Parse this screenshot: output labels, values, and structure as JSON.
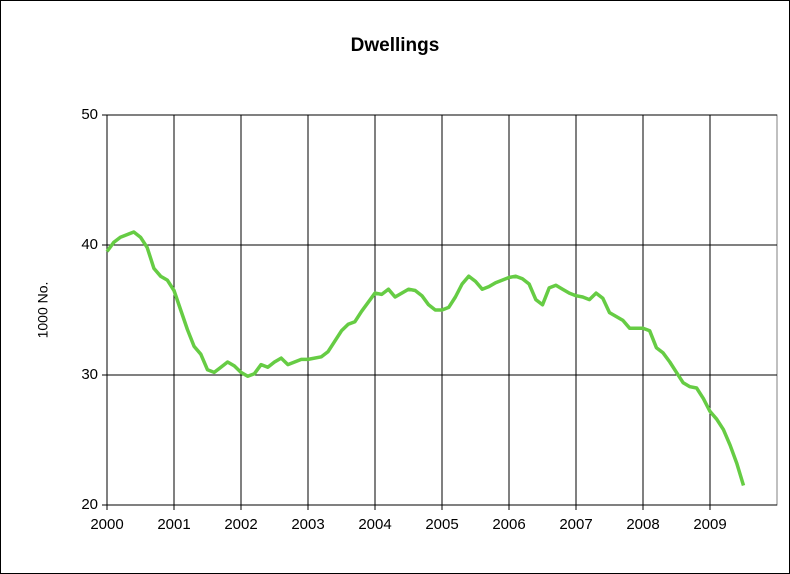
{
  "chart_data": {
    "type": "line",
    "title": "Dwellings",
    "ylabel": "1000 No.",
    "x": [
      2000.0,
      2000.1,
      2000.2,
      2000.3,
      2000.4,
      2000.5,
      2000.6,
      2000.7,
      2000.8,
      2000.9,
      2001.0,
      2001.1,
      2001.2,
      2001.3,
      2001.4,
      2001.5,
      2001.6,
      2001.7,
      2001.8,
      2001.9,
      2002.0,
      2002.1,
      2002.2,
      2002.3,
      2002.4,
      2002.5,
      2002.6,
      2002.7,
      2002.8,
      2002.9,
      2003.0,
      2003.2,
      2003.3,
      2003.4,
      2003.5,
      2003.6,
      2003.7,
      2003.8,
      2003.9,
      2004.0,
      2004.1,
      2004.2,
      2004.3,
      2004.4,
      2004.5,
      2004.6,
      2004.7,
      2004.8,
      2004.9,
      2005.0,
      2005.1,
      2005.2,
      2005.3,
      2005.4,
      2005.5,
      2005.6,
      2005.7,
      2005.8,
      2005.9,
      2006.0,
      2006.1,
      2006.2,
      2006.3,
      2006.4,
      2006.5,
      2006.6,
      2006.7,
      2006.8,
      2006.9,
      2007.0,
      2007.1,
      2007.2,
      2007.3,
      2007.4,
      2007.5,
      2007.6,
      2007.7,
      2007.8,
      2008.0,
      2008.1,
      2008.2,
      2008.3,
      2008.4,
      2008.5,
      2008.6,
      2008.7,
      2008.8,
      2008.9,
      2009.0,
      2009.1,
      2009.2,
      2009.3,
      2009.4,
      2009.5
    ],
    "series": [
      {
        "name": "Dwellings",
        "color": "#66cc44",
        "values": [
          39.5,
          40.2,
          40.6,
          40.8,
          41.0,
          40.6,
          39.8,
          38.2,
          37.6,
          37.3,
          36.5,
          35.0,
          33.5,
          32.2,
          31.6,
          30.4,
          30.2,
          30.6,
          31.0,
          30.7,
          30.2,
          29.9,
          30.1,
          30.8,
          30.6,
          31.0,
          31.3,
          30.8,
          31.0,
          31.2,
          31.2,
          31.4,
          31.8,
          32.6,
          33.4,
          33.9,
          34.1,
          34.9,
          35.6,
          36.3,
          36.2,
          36.6,
          36.0,
          36.3,
          36.6,
          36.5,
          36.1,
          35.4,
          35.0,
          35.0,
          35.2,
          36.0,
          37.0,
          37.6,
          37.2,
          36.6,
          36.8,
          37.1,
          37.3,
          37.5,
          37.6,
          37.4,
          37.0,
          35.8,
          35.4,
          36.7,
          36.9,
          36.6,
          36.3,
          36.1,
          36.0,
          35.8,
          36.3,
          35.9,
          34.8,
          34.5,
          34.2,
          33.6,
          33.6,
          33.4,
          32.1,
          31.7,
          31.0,
          30.2,
          29.4,
          29.1,
          29.0,
          28.2,
          27.2,
          26.6,
          25.8,
          24.6,
          23.2,
          21.5
        ]
      }
    ],
    "xlim": [
      2000,
      2010
    ],
    "xticks": [
      2000,
      2001,
      2002,
      2003,
      2004,
      2005,
      2006,
      2007,
      2008,
      2009
    ],
    "ylim": [
      20,
      50
    ],
    "yticks": [
      20,
      30,
      40,
      50
    ],
    "grid": true
  }
}
